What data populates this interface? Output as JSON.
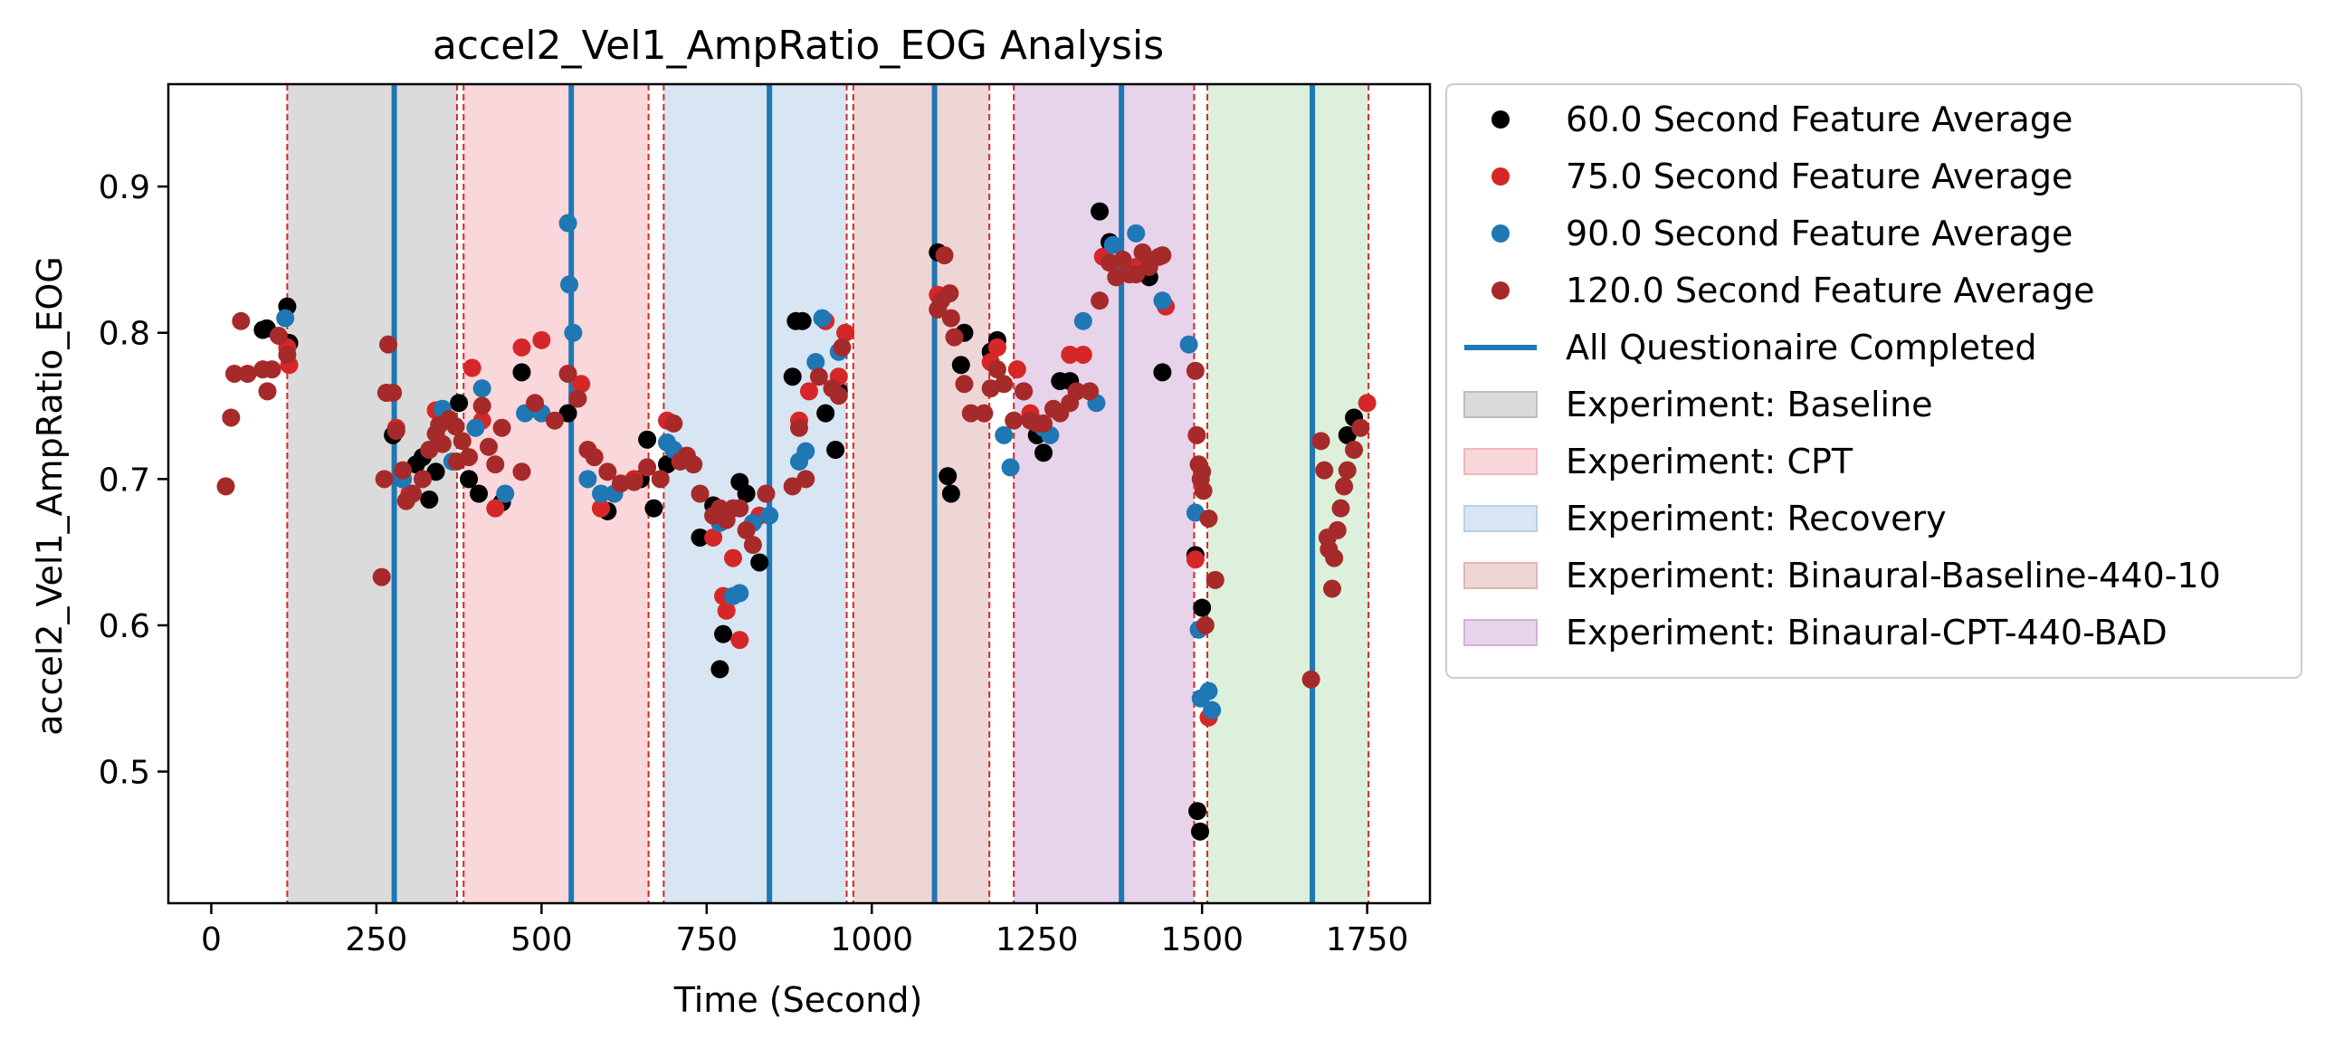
{
  "chart_data": {
    "type": "scatter",
    "title": "accel2_Vel1_AmpRatio_EOG Analysis",
    "xlabel": "Time (Second)",
    "ylabel": "accel2_Vel1_AmpRatio_EOG",
    "xlim": [
      -65,
      1845
    ],
    "ylim": [
      0.41,
      0.97
    ],
    "xticks": [
      0,
      250,
      500,
      750,
      1000,
      1250,
      1500,
      1750
    ],
    "yticks": [
      0.5,
      0.6,
      0.7,
      0.8,
      0.9
    ],
    "grid": false,
    "legend_position": "outside-right",
    "shaded_regions": [
      {
        "name": "Experiment: Baseline",
        "start": 115,
        "end": 372,
        "color": "#bdbdbd",
        "in_legend": true
      },
      {
        "name": "Experiment: CPT",
        "start": 382,
        "end": 662,
        "color": "#f4b6bb",
        "in_legend": true
      },
      {
        "name": "Experiment: Recovery",
        "start": 685,
        "end": 962,
        "color": "#b8d0e8",
        "in_legend": true
      },
      {
        "name": "Experiment: Binaural-Baseline-440-10",
        "start": 972,
        "end": 1178,
        "color": "#e2b4b4",
        "in_legend": true
      },
      {
        "name": "Experiment: Binaural-CPT-440-BAD",
        "start": 1215,
        "end": 1488,
        "color": "#d4b1d9",
        "in_legend": true
      },
      {
        "name": "",
        "start": 1508,
        "end": 1752,
        "color": "#bfe3bf",
        "in_legend": false
      }
    ],
    "region_boundaries": [
      115,
      372,
      382,
      662,
      685,
      962,
      972,
      1178,
      1215,
      1488,
      1508,
      1752
    ],
    "questionnaire_lines": {
      "name": "All Questionaire Completed",
      "color": "#1f77b4",
      "x": [
        277,
        545,
        845,
        1095,
        1378,
        1667
      ]
    },
    "series": [
      {
        "name": "60.0 Second Feature Average",
        "color": "#000000",
        "points": [
          [
            78,
            0.802
          ],
          [
            84,
            0.803
          ],
          [
            115,
            0.818
          ],
          [
            118,
            0.793
          ],
          [
            275,
            0.73
          ],
          [
            290,
            0.7
          ],
          [
            310,
            0.71
          ],
          [
            320,
            0.715
          ],
          [
            330,
            0.686
          ],
          [
            340,
            0.705
          ],
          [
            375,
            0.752
          ],
          [
            390,
            0.7
          ],
          [
            405,
            0.69
          ],
          [
            440,
            0.684
          ],
          [
            470,
            0.773
          ],
          [
            540,
            0.745
          ],
          [
            590,
            0.68
          ],
          [
            600,
            0.678
          ],
          [
            650,
            0.7
          ],
          [
            660,
            0.727
          ],
          [
            670,
            0.68
          ],
          [
            690,
            0.71
          ],
          [
            740,
            0.66
          ],
          [
            760,
            0.682
          ],
          [
            770,
            0.57
          ],
          [
            775,
            0.594
          ],
          [
            800,
            0.698
          ],
          [
            810,
            0.69
          ],
          [
            830,
            0.643
          ],
          [
            880,
            0.77
          ],
          [
            885,
            0.808
          ],
          [
            895,
            0.808
          ],
          [
            930,
            0.745
          ],
          [
            945,
            0.72
          ],
          [
            950,
            0.76
          ],
          [
            1100,
            0.855
          ],
          [
            1115,
            0.702
          ],
          [
            1120,
            0.69
          ],
          [
            1135,
            0.778
          ],
          [
            1140,
            0.8
          ],
          [
            1180,
            0.787
          ],
          [
            1190,
            0.795
          ],
          [
            1250,
            0.73
          ],
          [
            1260,
            0.718
          ],
          [
            1285,
            0.767
          ],
          [
            1300,
            0.767
          ],
          [
            1345,
            0.883
          ],
          [
            1360,
            0.862
          ],
          [
            1420,
            0.838
          ],
          [
            1440,
            0.773
          ],
          [
            1490,
            0.648
          ],
          [
            1493,
            0.473
          ],
          [
            1497,
            0.459
          ],
          [
            1500,
            0.612
          ],
          [
            1720,
            0.73
          ],
          [
            1730,
            0.742
          ]
        ]
      },
      {
        "name": "75.0 Second Feature Average",
        "color": "#d62728",
        "points": [
          [
            115,
            0.79
          ],
          [
            118,
            0.778
          ],
          [
            280,
            0.735
          ],
          [
            300,
            0.69
          ],
          [
            340,
            0.747
          ],
          [
            395,
            0.776
          ],
          [
            410,
            0.74
          ],
          [
            430,
            0.68
          ],
          [
            470,
            0.79
          ],
          [
            500,
            0.795
          ],
          [
            560,
            0.765
          ],
          [
            590,
            0.68
          ],
          [
            640,
            0.7
          ],
          [
            690,
            0.74
          ],
          [
            760,
            0.66
          ],
          [
            775,
            0.62
          ],
          [
            780,
            0.61
          ],
          [
            790,
            0.646
          ],
          [
            800,
            0.59
          ],
          [
            830,
            0.675
          ],
          [
            890,
            0.74
          ],
          [
            905,
            0.76
          ],
          [
            930,
            0.808
          ],
          [
            950,
            0.77
          ],
          [
            960,
            0.8
          ],
          [
            1100,
            0.826
          ],
          [
            1180,
            0.78
          ],
          [
            1190,
            0.79
          ],
          [
            1220,
            0.775
          ],
          [
            1240,
            0.745
          ],
          [
            1300,
            0.785
          ],
          [
            1320,
            0.785
          ],
          [
            1350,
            0.852
          ],
          [
            1400,
            0.845
          ],
          [
            1445,
            0.818
          ],
          [
            1490,
            0.645
          ],
          [
            1510,
            0.537
          ],
          [
            1750,
            0.752
          ]
        ]
      },
      {
        "name": "90.0 Second Feature Average",
        "color": "#1f77b4",
        "points": [
          [
            112,
            0.81
          ],
          [
            290,
            0.7
          ],
          [
            350,
            0.748
          ],
          [
            365,
            0.712
          ],
          [
            400,
            0.735
          ],
          [
            410,
            0.762
          ],
          [
            445,
            0.69
          ],
          [
            475,
            0.745
          ],
          [
            500,
            0.745
          ],
          [
            540,
            0.875
          ],
          [
            542,
            0.833
          ],
          [
            548,
            0.8
          ],
          [
            570,
            0.7
          ],
          [
            590,
            0.69
          ],
          [
            610,
            0.69
          ],
          [
            690,
            0.725
          ],
          [
            700,
            0.72
          ],
          [
            770,
            0.67
          ],
          [
            790,
            0.62
          ],
          [
            800,
            0.622
          ],
          [
            820,
            0.67
          ],
          [
            845,
            0.675
          ],
          [
            890,
            0.712
          ],
          [
            900,
            0.719
          ],
          [
            915,
            0.78
          ],
          [
            925,
            0.81
          ],
          [
            950,
            0.787
          ],
          [
            1200,
            0.73
          ],
          [
            1210,
            0.708
          ],
          [
            1230,
            0.76
          ],
          [
            1260,
            0.735
          ],
          [
            1270,
            0.73
          ],
          [
            1320,
            0.808
          ],
          [
            1340,
            0.752
          ],
          [
            1365,
            0.86
          ],
          [
            1375,
            0.845
          ],
          [
            1400,
            0.868
          ],
          [
            1440,
            0.822
          ],
          [
            1480,
            0.792
          ],
          [
            1490,
            0.677
          ],
          [
            1495,
            0.597
          ],
          [
            1498,
            0.55
          ],
          [
            1510,
            0.555
          ],
          [
            1515,
            0.542
          ]
        ]
      },
      {
        "name": "120.0 Second Feature Average",
        "color": "#a62a2a",
        "points": [
          [
            22,
            0.695
          ],
          [
            30,
            0.742
          ],
          [
            35,
            0.772
          ],
          [
            45,
            0.808
          ],
          [
            55,
            0.772
          ],
          [
            78,
            0.775
          ],
          [
            85,
            0.76
          ],
          [
            92,
            0.775
          ],
          [
            102,
            0.798
          ],
          [
            115,
            0.785
          ],
          [
            258,
            0.633
          ],
          [
            262,
            0.7
          ],
          [
            265,
            0.759
          ],
          [
            268,
            0.792
          ],
          [
            275,
            0.759
          ],
          [
            280,
            0.733
          ],
          [
            290,
            0.706
          ],
          [
            295,
            0.685
          ],
          [
            305,
            0.69
          ],
          [
            320,
            0.7
          ],
          [
            330,
            0.72
          ],
          [
            340,
            0.731
          ],
          [
            345,
            0.737
          ],
          [
            350,
            0.724
          ],
          [
            360,
            0.741
          ],
          [
            370,
            0.736
          ],
          [
            372,
            0.712
          ],
          [
            380,
            0.726
          ],
          [
            390,
            0.715
          ],
          [
            410,
            0.75
          ],
          [
            420,
            0.722
          ],
          [
            430,
            0.71
          ],
          [
            440,
            0.735
          ],
          [
            470,
            0.705
          ],
          [
            490,
            0.752
          ],
          [
            520,
            0.74
          ],
          [
            540,
            0.772
          ],
          [
            555,
            0.755
          ],
          [
            570,
            0.72
          ],
          [
            580,
            0.715
          ],
          [
            600,
            0.705
          ],
          [
            620,
            0.697
          ],
          [
            640,
            0.698
          ],
          [
            660,
            0.708
          ],
          [
            680,
            0.7
          ],
          [
            700,
            0.738
          ],
          [
            710,
            0.712
          ],
          [
            720,
            0.716
          ],
          [
            730,
            0.71
          ],
          [
            740,
            0.69
          ],
          [
            760,
            0.675
          ],
          [
            770,
            0.68
          ],
          [
            780,
            0.672
          ],
          [
            790,
            0.68
          ],
          [
            800,
            0.68
          ],
          [
            810,
            0.665
          ],
          [
            820,
            0.655
          ],
          [
            840,
            0.69
          ],
          [
            880,
            0.695
          ],
          [
            890,
            0.735
          ],
          [
            900,
            0.7
          ],
          [
            920,
            0.77
          ],
          [
            940,
            0.762
          ],
          [
            950,
            0.757
          ],
          [
            955,
            0.79
          ],
          [
            1100,
            0.816
          ],
          [
            1105,
            0.822
          ],
          [
            1110,
            0.853
          ],
          [
            1118,
            0.827
          ],
          [
            1120,
            0.81
          ],
          [
            1125,
            0.797
          ],
          [
            1140,
            0.765
          ],
          [
            1150,
            0.745
          ],
          [
            1170,
            0.745
          ],
          [
            1180,
            0.762
          ],
          [
            1190,
            0.775
          ],
          [
            1200,
            0.765
          ],
          [
            1215,
            0.74
          ],
          [
            1230,
            0.76
          ],
          [
            1240,
            0.74
          ],
          [
            1250,
            0.738
          ],
          [
            1260,
            0.738
          ],
          [
            1275,
            0.748
          ],
          [
            1285,
            0.745
          ],
          [
            1300,
            0.752
          ],
          [
            1310,
            0.76
          ],
          [
            1330,
            0.76
          ],
          [
            1345,
            0.822
          ],
          [
            1360,
            0.848
          ],
          [
            1370,
            0.838
          ],
          [
            1380,
            0.85
          ],
          [
            1390,
            0.84
          ],
          [
            1400,
            0.84
          ],
          [
            1410,
            0.855
          ],
          [
            1420,
            0.845
          ],
          [
            1435,
            0.852
          ],
          [
            1440,
            0.853
          ],
          [
            1490,
            0.774
          ],
          [
            1492,
            0.73
          ],
          [
            1495,
            0.71
          ],
          [
            1498,
            0.7
          ],
          [
            1500,
            0.705
          ],
          [
            1502,
            0.692
          ],
          [
            1505,
            0.6
          ],
          [
            1510,
            0.673
          ],
          [
            1520,
            0.631
          ],
          [
            1665,
            0.563
          ],
          [
            1680,
            0.726
          ],
          [
            1685,
            0.706
          ],
          [
            1690,
            0.66
          ],
          [
            1692,
            0.652
          ],
          [
            1697,
            0.625
          ],
          [
            1700,
            0.646
          ],
          [
            1705,
            0.665
          ],
          [
            1710,
            0.68
          ],
          [
            1715,
            0.695
          ],
          [
            1720,
            0.706
          ],
          [
            1730,
            0.72
          ],
          [
            1740,
            0.735
          ]
        ]
      }
    ]
  }
}
